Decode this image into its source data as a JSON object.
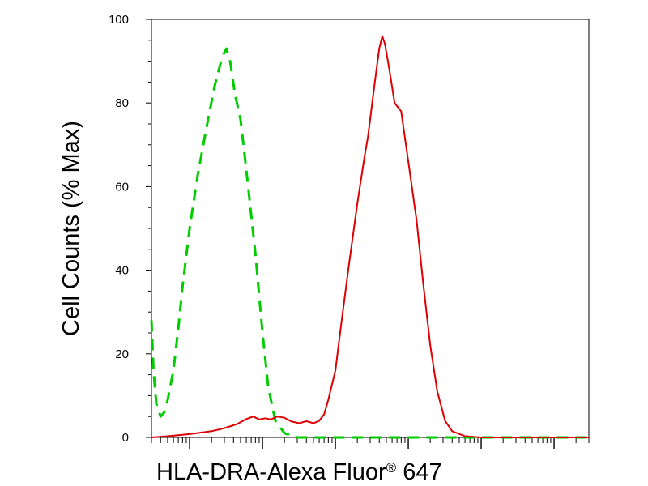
{
  "chart_data": {
    "type": "line",
    "xlabel": "HLA-DRA-Alexa Fluor",
    "xlabel_mark": "®",
    "xlabel_suffix": " 647",
    "ylabel": "Cell Counts (% Max)",
    "x_scale": "log",
    "x_axis_tick_labels": false,
    "xlim": [
      0.03,
      30000
    ],
    "ylim": [
      0,
      100
    ],
    "yticks": [
      0,
      20,
      40,
      60,
      80,
      100
    ],
    "grid": false,
    "legend": "none",
    "series": [
      {
        "color": "#00cc00",
        "dash": "dashed",
        "points": [
          [
            0.03,
            28
          ],
          [
            0.032,
            16
          ],
          [
            0.035,
            8
          ],
          [
            0.04,
            5
          ],
          [
            0.045,
            6
          ],
          [
            0.05,
            9
          ],
          [
            0.06,
            16
          ],
          [
            0.07,
            26
          ],
          [
            0.08,
            36
          ],
          [
            0.1,
            50
          ],
          [
            0.13,
            63
          ],
          [
            0.17,
            74
          ],
          [
            0.22,
            84
          ],
          [
            0.28,
            91
          ],
          [
            0.32,
            93
          ],
          [
            0.36,
            90
          ],
          [
            0.42,
            82
          ],
          [
            0.5,
            76
          ],
          [
            0.6,
            64
          ],
          [
            0.8,
            44
          ],
          [
            1.0,
            25
          ],
          [
            1.2,
            12
          ],
          [
            1.5,
            4
          ],
          [
            2.0,
            1
          ],
          [
            3,
            0
          ],
          [
            10,
            0
          ],
          [
            100,
            0
          ],
          [
            1000,
            0
          ],
          [
            10000,
            0
          ],
          [
            30000,
            0
          ]
        ]
      },
      {
        "color": "#dd0000",
        "dash": "solid",
        "points": [
          [
            0.03,
            0
          ],
          [
            0.05,
            0.3
          ],
          [
            0.1,
            0.8
          ],
          [
            0.2,
            1.5
          ],
          [
            0.3,
            2.2
          ],
          [
            0.45,
            3.2
          ],
          [
            0.6,
            4.4
          ],
          [
            0.75,
            5
          ],
          [
            0.9,
            4.3
          ],
          [
            1.1,
            4.6
          ],
          [
            1.3,
            4.3
          ],
          [
            1.6,
            5
          ],
          [
            2.0,
            4.7
          ],
          [
            2.5,
            3.8
          ],
          [
            3.2,
            3.4
          ],
          [
            4.0,
            3.9
          ],
          [
            5,
            3.4
          ],
          [
            6,
            4
          ],
          [
            7,
            5.5
          ],
          [
            8,
            9
          ],
          [
            10,
            16
          ],
          [
            12,
            27
          ],
          [
            15,
            40
          ],
          [
            20,
            56
          ],
          [
            25,
            67
          ],
          [
            28,
            72
          ],
          [
            32,
            80
          ],
          [
            36,
            87
          ],
          [
            40,
            93
          ],
          [
            44,
            96
          ],
          [
            48,
            94
          ],
          [
            55,
            88
          ],
          [
            65,
            80
          ],
          [
            80,
            78
          ],
          [
            100,
            66
          ],
          [
            130,
            52
          ],
          [
            160,
            37
          ],
          [
            200,
            22
          ],
          [
            250,
            11
          ],
          [
            320,
            4
          ],
          [
            400,
            1.5
          ],
          [
            600,
            0.3
          ],
          [
            1000,
            0
          ],
          [
            30000,
            0
          ]
        ]
      }
    ]
  }
}
